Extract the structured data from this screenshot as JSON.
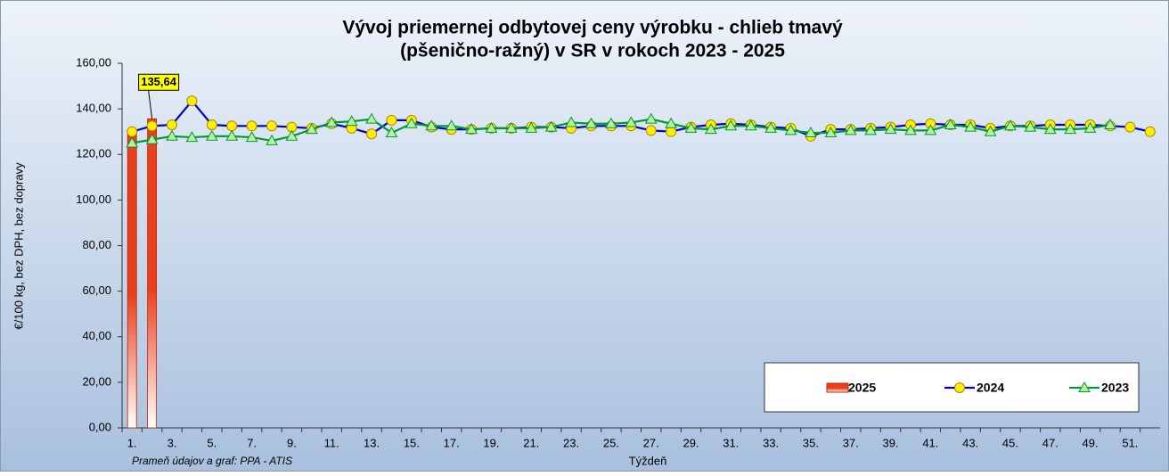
{
  "chart_data": {
    "type": "bar_line",
    "title_lines": [
      "Vývoj priemernej odbytovej ceny výrobku - chlieb tmavý",
      "(pšenično-ražný) v SR v rokoch 2023 - 2025"
    ],
    "y_label": "€/100 kg, bez DPH, bez dopravy",
    "x_label": "Týždeň",
    "source": "Prameň údajov a graf: PPA - ATIS",
    "categories": [
      "1.",
      null,
      "3.",
      null,
      "5.",
      null,
      "7.",
      null,
      "9.",
      null,
      "11.",
      null,
      "13.",
      null,
      "15.",
      null,
      "17.",
      null,
      "19.",
      null,
      "21.",
      null,
      "23.",
      null,
      "25.",
      null,
      "27.",
      null,
      "29.",
      null,
      "31.",
      null,
      "33.",
      null,
      "35.",
      null,
      "37.",
      null,
      "39.",
      null,
      "41.",
      null,
      "43.",
      null,
      "45.",
      null,
      "47.",
      null,
      "49.",
      null,
      "51.",
      null
    ],
    "ylim": [
      0,
      160
    ],
    "yticks": [
      {
        "value": 0,
        "label": "0,00"
      },
      {
        "value": 20,
        "label": "20,00"
      },
      {
        "value": 40,
        "label": "40,00"
      },
      {
        "value": 60,
        "label": "60,00"
      },
      {
        "value": 80,
        "label": "80,00"
      },
      {
        "value": 100,
        "label": "100,00"
      },
      {
        "value": 120,
        "label": "120,00"
      },
      {
        "value": 140,
        "label": "140,00"
      },
      {
        "value": 160,
        "label": "160,00"
      }
    ],
    "legend": "lower right",
    "series": [
      {
        "name": "2025",
        "kind": "bar",
        "color": "#e8401c",
        "values": [
          130,
          135.64,
          null,
          null,
          null,
          null,
          null,
          null,
          null,
          null,
          null,
          null,
          null,
          null,
          null,
          null,
          null,
          null,
          null,
          null,
          null,
          null,
          null,
          null,
          null,
          null,
          null,
          null,
          null,
          null,
          null,
          null,
          null,
          null,
          null,
          null,
          null,
          null,
          null,
          null,
          null,
          null,
          null,
          null,
          null,
          null,
          null,
          null,
          null,
          null,
          null,
          null
        ],
        "value_labels": [
          null,
          "135,64",
          null,
          null,
          null,
          null,
          null,
          null,
          null,
          null,
          null,
          null,
          null,
          null,
          null,
          null,
          null,
          null,
          null,
          null,
          null,
          null,
          null,
          null,
          null,
          null,
          null,
          null,
          null,
          null,
          null,
          null,
          null,
          null,
          null,
          null,
          null,
          null,
          null,
          null,
          null,
          null,
          null,
          null,
          null,
          null,
          null,
          null,
          null,
          null,
          null,
          null
        ]
      },
      {
        "name": "2024",
        "kind": "line",
        "marker": "circle",
        "color": "#0000cc",
        "marker_color": "#ffee00",
        "values": [
          130,
          132.5,
          133,
          143.5,
          133,
          132.5,
          132.5,
          132.5,
          132,
          131.5,
          133.5,
          131.5,
          129,
          135,
          135,
          132,
          131,
          131,
          131.5,
          131.5,
          132,
          132,
          131.5,
          132.5,
          132.5,
          132.5,
          130.5,
          130,
          132,
          133,
          133.5,
          133,
          132,
          131.5,
          128,
          131,
          131,
          131.5,
          132,
          133,
          133.5,
          133,
          133,
          131.5,
          132.5,
          132.5,
          133,
          133,
          133,
          132.5,
          132,
          130
        ]
      },
      {
        "name": "2023",
        "kind": "line",
        "marker": "triangle",
        "color": "#009933",
        "marker_color": "#b8f0a0",
        "values": [
          125,
          126.5,
          128,
          127.5,
          128,
          128,
          127.5,
          126,
          128,
          131,
          134,
          134.5,
          135.5,
          129.5,
          133.5,
          132.5,
          132.5,
          131,
          131.5,
          131.5,
          131.5,
          132,
          134,
          133.5,
          133.5,
          134,
          135.5,
          133.5,
          131.5,
          131,
          132.5,
          132.5,
          131.5,
          130.5,
          129.5,
          129.5,
          130.5,
          130.5,
          131,
          130.5,
          130.5,
          133,
          132,
          130,
          132.5,
          132,
          131,
          131,
          131.5,
          133,
          null,
          null
        ]
      }
    ]
  }
}
